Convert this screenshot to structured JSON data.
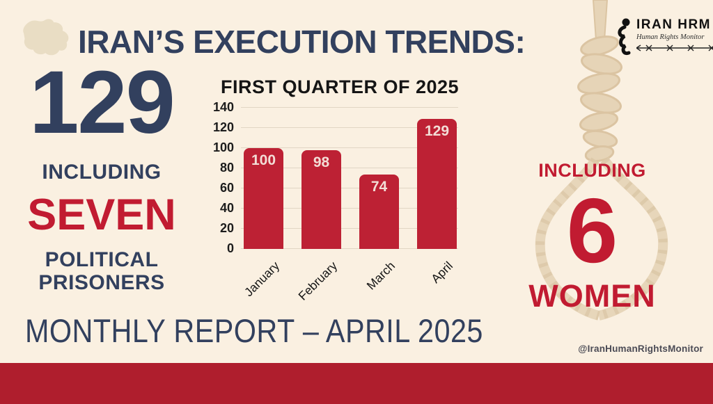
{
  "colors": {
    "bg": "#FAF0E1",
    "navy": "#32405E",
    "red": "#C11B31",
    "bar-red": "#BD2134",
    "bottom-bar": "#AF1E2D",
    "map-beige": "#E9DDC4",
    "rope-tan": "#D8BF98"
  },
  "header": {
    "title": "IRAN’S EXECUTION TRENDS:"
  },
  "logo": {
    "name": "IRAN HRM",
    "tagline": "Human Rights Monitor"
  },
  "left_stat": {
    "total": "129",
    "including_label": "INCLUDING",
    "highlight": "SEVEN",
    "line1": "POLITICAL",
    "line2": "PRISONERS"
  },
  "right_stat": {
    "including_label": "INCLUDING",
    "count": "6",
    "label": "WOMEN"
  },
  "chart_data": {
    "type": "bar",
    "title": "FIRST QUARTER OF 2025",
    "categories": [
      "January",
      "February",
      "March",
      "April"
    ],
    "values": [
      100,
      98,
      74,
      129
    ],
    "ylim": [
      0,
      140
    ],
    "yticks": [
      0,
      20,
      40,
      60,
      80,
      100,
      120,
      140
    ],
    "bar_color": "#BD2134",
    "value_label_color": "#F3DDD6",
    "grid": true,
    "value_labels": "inside-top",
    "x_tick_rotation": -45
  },
  "footer": {
    "title": "MONTHLY REPORT – APRIL 2025",
    "handle": "@IranHumanRightsMonitor"
  },
  "icons": {
    "iran_map": "iran-country-silhouette",
    "noose": "hangman-noose-rope",
    "logo_figure": "calligraphic-person",
    "barbed_wire": "barbed-wire-line"
  }
}
